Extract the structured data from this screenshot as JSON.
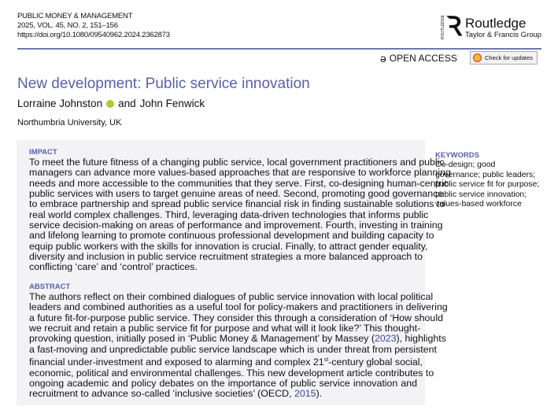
{
  "journal": {
    "name": "PUBLIC MONEY & MANAGEMENT",
    "issue": "2025, VOL. 45, NO. 2, 151–156",
    "doi": "https://doi.org/10.1080/09540962.2024.2362873"
  },
  "publisher": {
    "name": "Routledge",
    "group": "Taylor & Francis Group",
    "vertical": "ROUTLEDGE"
  },
  "open_access": "OPEN ACCESS",
  "check_updates": "Check for updates",
  "title": "New development: Public service innovation",
  "authors": {
    "first": "Lorraine Johnston",
    "connector": "and",
    "second": "John Fenwick"
  },
  "affiliation": "Northumbria University, UK",
  "impact": {
    "heading": "IMPACT",
    "lines": [
      "To meet the future fitness of a changing public service, local government practitioners and public",
      "managers can advance more values-based approaches that are responsive to workforce planning",
      "needs and more accessible to the communities that they serve. First, co-designing human-centric",
      "public services with users to target genuine areas of need. Second, promoting good governance",
      "to embrace partnership and spread public service financial risk in finding sustainable solutions to",
      "real world complex challenges. Third, leveraging data-driven technologies that informs public",
      "service decision-making on areas of performance and improvement. Fourth, investing in training",
      "and lifelong learning to promote continuous professional development and building capacity to",
      "equip public workers with the skills for innovation is crucial. Finally, to attract gender equality,",
      "diversity and inclusion in public service recruitment strategies a more balanced approach to",
      "conflicting ‘care’ and ‘control’ practices."
    ]
  },
  "abstract": {
    "heading": "ABSTRACT",
    "lines": [
      "The authors reflect on their combined dialogues of public service innovation with local political",
      "leaders and combined authorities as a useful tool for policy-makers and practitioners in delivering",
      "a future fit-for-purpose public service. They consider this through a consideration of ‘How should",
      "we recruit and retain a public service fit for purpose and what will it look like?’ This thought-",
      "provoking question, initially posed in ‘Public Money & Management’ by Massey (2023), highlights",
      "a fast-moving and unpredictable public service landscape which is under threat from persistent",
      "financial under-investment and exposed to alarming and complex 21st-century global social,",
      "economic, political and environmental challenges. This new development article contributes to",
      "ongoing academic and policy debates on the importance of public service innovation and",
      "recruitment to advance so-called ‘inclusive societies’ (OECD, 2015)."
    ],
    "link_2023": "2023",
    "link_2015": "2015",
    "superscript": "st"
  },
  "keywords": {
    "heading": "KEYWORDS",
    "lines": [
      "Co-design; good",
      "governance; public leaders;",
      "public service fit for purpose;",
      "public service innovation;",
      "values-based workforce"
    ]
  },
  "colors": {
    "accent": "#5a60a8",
    "box": "#f3f3f6",
    "rule": "#6e78b0"
  }
}
